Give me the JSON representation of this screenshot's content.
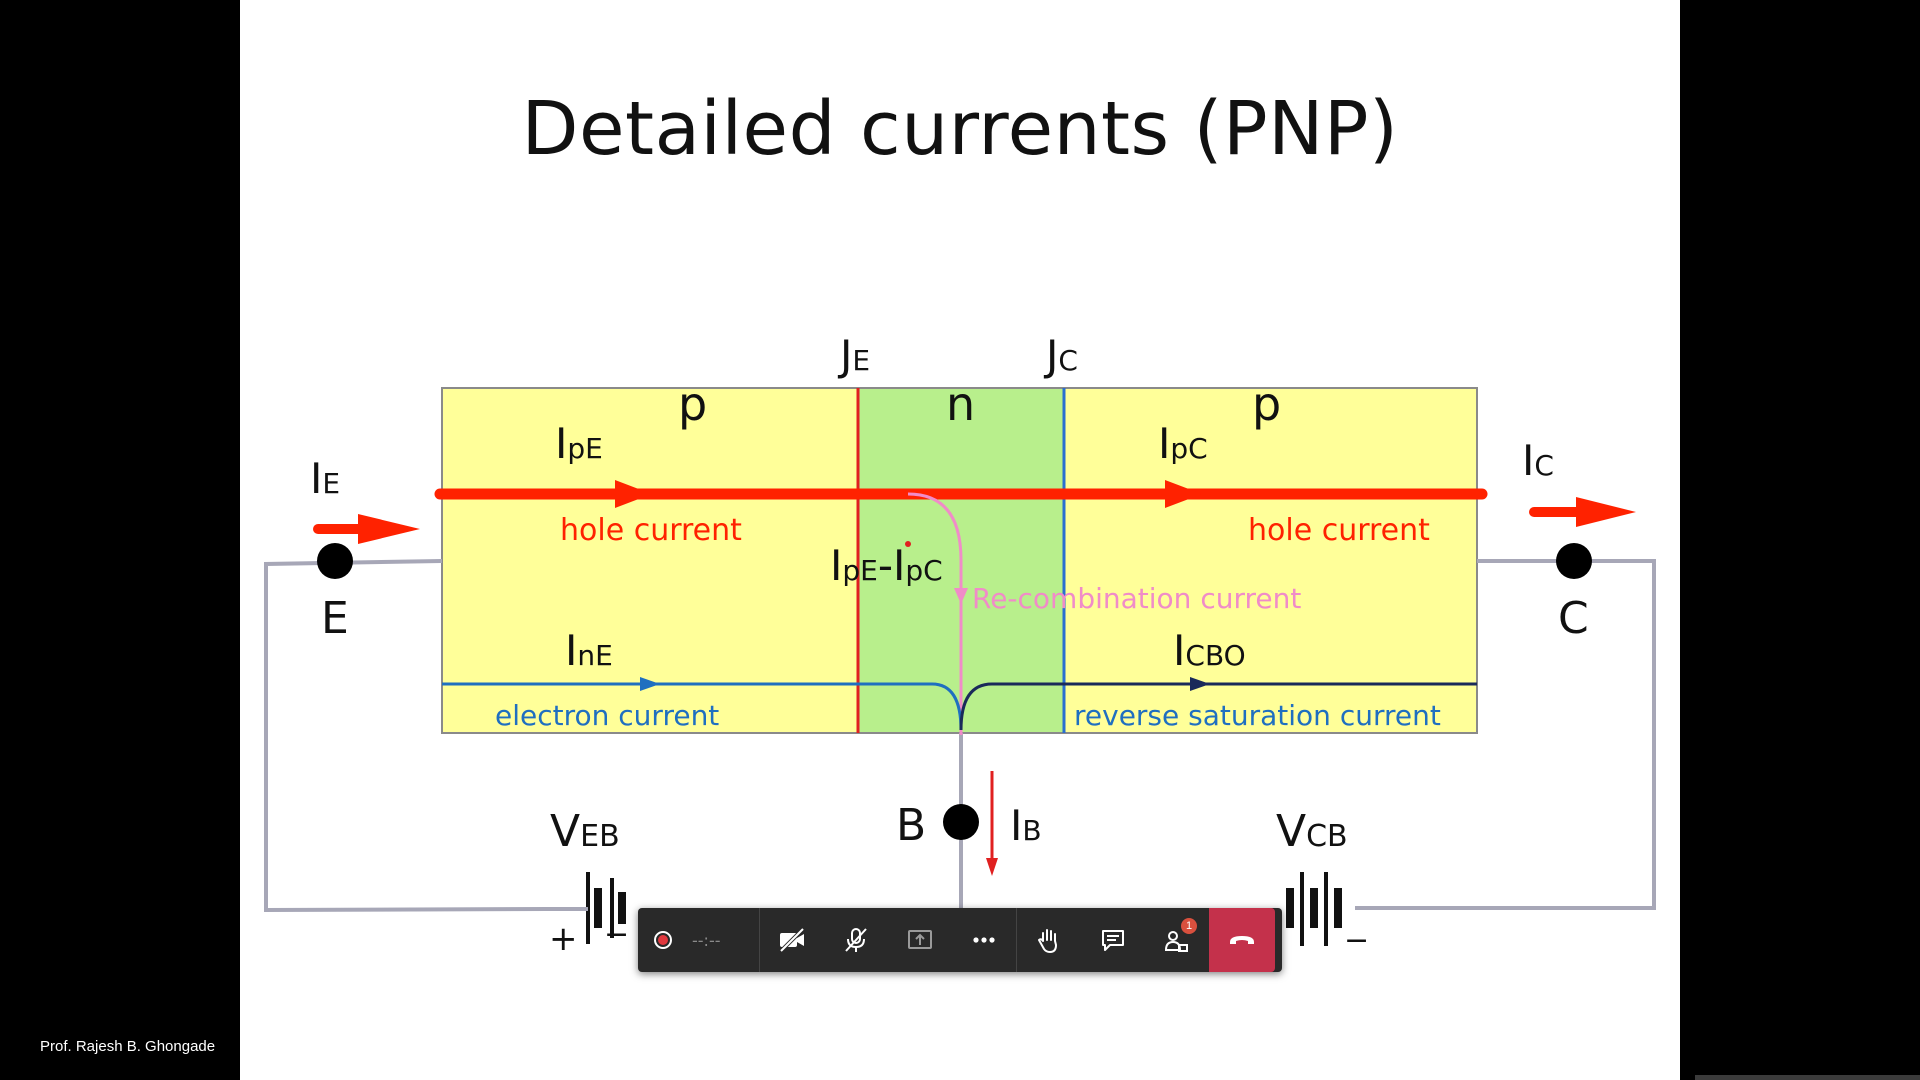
{
  "slide": {
    "title": "Detailed currents (PNP)",
    "regions": {
      "left": "p",
      "middle": "n",
      "right": "p"
    },
    "junctions": [
      {
        "main": "J",
        "sub": "E"
      },
      {
        "main": "J",
        "sub": "C"
      }
    ],
    "currents": {
      "IE": {
        "main": "I",
        "sub": "E"
      },
      "IC": {
        "main": "I",
        "sub": "C"
      },
      "IpE": {
        "main": "I",
        "sub": "pE"
      },
      "IpC": {
        "main": "I",
        "sub": "pC"
      },
      "IpE_IpC": {
        "main1": "I",
        "sub1": "pE",
        "dash": "-",
        "main2": "I",
        "sub2": "pC"
      },
      "InE": {
        "main": "I",
        "sub": "nE"
      },
      "ICBO": {
        "main": "I",
        "sub": "CBO"
      },
      "IB": {
        "main": "I",
        "sub": "B"
      }
    },
    "labels": {
      "hole_current_left": "hole current",
      "hole_current_right": "hole current",
      "recombination": "Re-combination current",
      "electron_current": "electron current",
      "reverse_saturation": "reverse saturation current"
    },
    "terminals": {
      "emitter": "E",
      "collector": "C",
      "base": "B"
    },
    "sources": {
      "VEB": {
        "main": "V",
        "sub": "EB",
        "plus": "+",
        "minus": "−"
      },
      "VCB": {
        "main": "V",
        "sub": "CB",
        "minus": "−"
      }
    },
    "colors": {
      "p_region": "#ffff99",
      "n_region": "#b8ef8c",
      "hole_arrow": "#ff2200",
      "electron_line": "#1f6fc0",
      "recombination": "#f08cc8",
      "junction_e": "#e02020",
      "junction_c": "#2a6fd0"
    }
  },
  "participant": {
    "name": "Prof. Rajesh B. Ghongade"
  },
  "toolbar": {
    "record_time": "--:--",
    "participants_badge": "1",
    "icons": [
      "record-icon",
      "camera-off-icon",
      "mic-off-icon",
      "share-screen-icon",
      "more-icon",
      "raise-hand-icon",
      "chat-icon",
      "participants-icon",
      "hang-up-icon"
    ]
  }
}
